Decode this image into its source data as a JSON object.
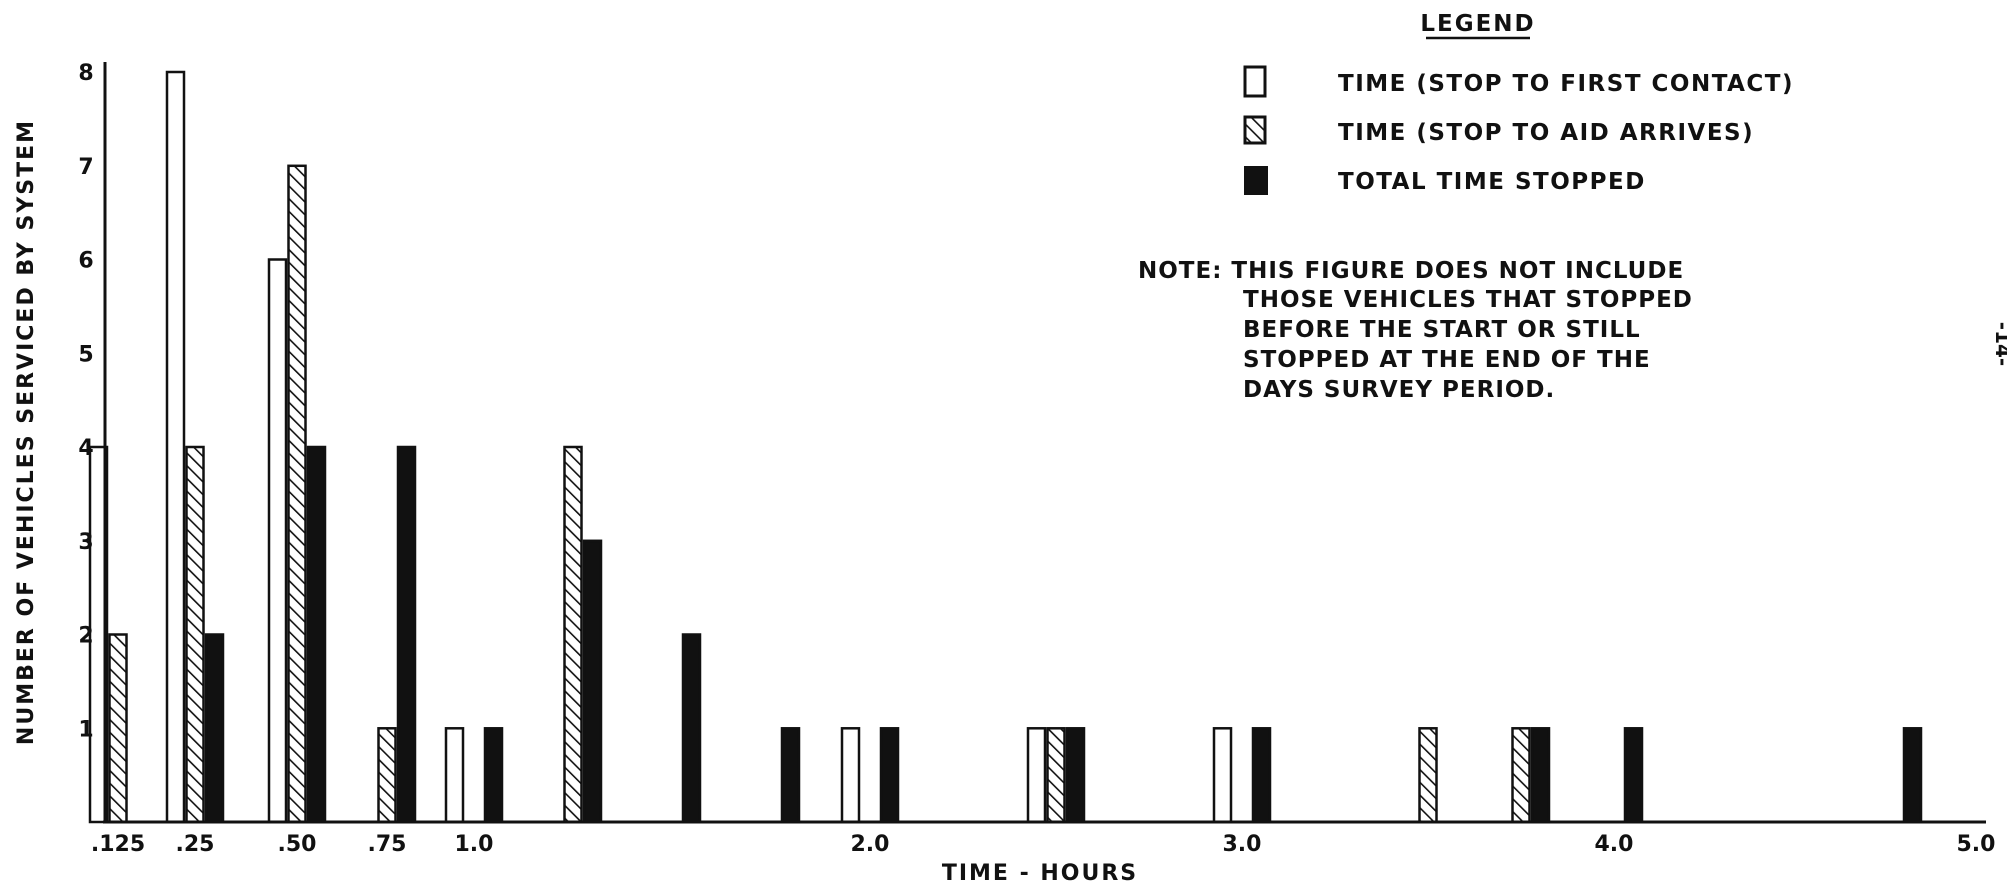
{
  "chart_data": {
    "type": "bar",
    "title": "",
    "xlabel": "TIME - HOURS",
    "ylabel": "NUMBER OF VEHICLES SERVICED BY SYSTEM",
    "ylim": [
      0,
      8
    ],
    "xlim": [
      0.1,
      5.0
    ],
    "x_ticks": [
      {
        "value": 0.125,
        "label": ".125"
      },
      {
        "value": 0.25,
        "label": ".25"
      },
      {
        "value": 0.5,
        "label": ".50"
      },
      {
        "value": 0.75,
        "label": ".75"
      },
      {
        "value": 1.0,
        "label": "1.0"
      },
      {
        "value": 2.0,
        "label": "2.0"
      },
      {
        "value": 3.0,
        "label": "3.0"
      },
      {
        "value": 4.0,
        "label": "4.0"
      },
      {
        "value": 5.0,
        "label": "5.0"
      }
    ],
    "y_ticks": [
      1,
      2,
      3,
      4,
      5,
      6,
      7,
      8
    ],
    "grid": false,
    "legend_position": "top-right",
    "legend_title": "LEGEND",
    "series": [
      {
        "name": "TIME (STOP TO FIRST CONTACT)",
        "pattern": "open",
        "points": [
          {
            "x": 0.125,
            "y": 4
          },
          {
            "x": 0.25,
            "y": 8
          },
          {
            "x": 0.5,
            "y": 6
          },
          {
            "x": 1.0,
            "y": 1
          },
          {
            "x": 2.0,
            "y": 1
          },
          {
            "x": 2.5,
            "y": 1
          },
          {
            "x": 3.0,
            "y": 1
          }
        ]
      },
      {
        "name": "TIME (STOP TO AID ARRIVES)",
        "pattern": "hatched",
        "points": [
          {
            "x": 0.125,
            "y": 2
          },
          {
            "x": 0.25,
            "y": 4
          },
          {
            "x": 0.5,
            "y": 7
          },
          {
            "x": 0.75,
            "y": 1
          },
          {
            "x": 1.25,
            "y": 4
          },
          {
            "x": 2.5,
            "y": 1
          },
          {
            "x": 3.5,
            "y": 1
          },
          {
            "x": 3.75,
            "y": 1
          }
        ]
      },
      {
        "name": "TOTAL TIME STOPPED",
        "pattern": "solid",
        "points": [
          {
            "x": 0.25,
            "y": 2
          },
          {
            "x": 0.5,
            "y": 4
          },
          {
            "x": 0.75,
            "y": 4
          },
          {
            "x": 1.0,
            "y": 1
          },
          {
            "x": 1.25,
            "y": 3
          },
          {
            "x": 1.5,
            "y": 2
          },
          {
            "x": 1.75,
            "y": 1
          },
          {
            "x": 2.0,
            "y": 1
          },
          {
            "x": 2.5,
            "y": 1
          },
          {
            "x": 3.0,
            "y": 1
          },
          {
            "x": 3.75,
            "y": 1
          },
          {
            "x": 4.0,
            "y": 1
          },
          {
            "x": 4.75,
            "y": 1
          }
        ]
      }
    ],
    "note_lines": [
      "NOTE: THIS FIGURE DOES NOT INCLUDE",
      "THOSE VEHICLES THAT STOPPED",
      "BEFORE THE START OR STILL",
      "STOPPED AT THE END OF THE",
      "DAYS SURVEY PERIOD."
    ],
    "page_number": "-14-",
    "colors": {
      "ink": "#111111",
      "paper": "#ffffff"
    }
  }
}
